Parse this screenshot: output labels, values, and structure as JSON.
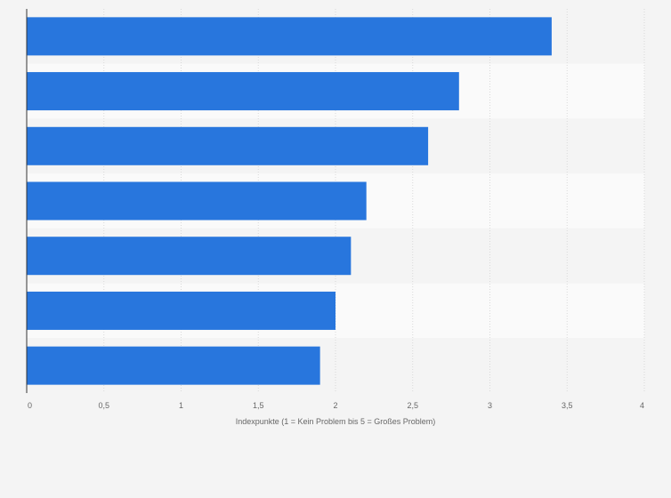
{
  "chart_data": {
    "type": "bar",
    "orientation": "horizontal",
    "title": "",
    "categories": [
      "",
      "",
      "",
      "",
      "",
      "",
      ""
    ],
    "values": [
      3.4,
      2.8,
      2.6,
      2.2,
      2.1,
      2.0,
      1.9
    ],
    "xlabel": "Indexpunkte (1 = Kein Problem bis 5 = Großes Problem)",
    "ylabel": "",
    "xlim": [
      0,
      4
    ],
    "xticks": [
      0,
      0.5,
      1,
      1.5,
      2,
      2.5,
      3,
      3.5,
      4
    ],
    "xtick_labels": [
      "0",
      "0,5",
      "1",
      "1,5",
      "2",
      "2,5",
      "3",
      "3,5",
      "4"
    ],
    "grid": true,
    "bar_color": "#2876dd",
    "band_colors": [
      "#f4f4f4",
      "#fafafa"
    ],
    "gridline_color": "#d9d9d9",
    "axis_color": "#333333"
  }
}
